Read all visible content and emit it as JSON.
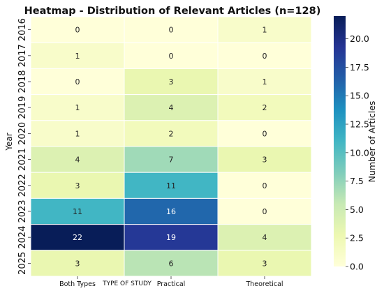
{
  "chart_data": {
    "type": "heatmap",
    "title": "Heatmap - Distribution of Relevant Articles (n=128)",
    "xlabel": "TYPE OF STUDY",
    "ylabel": "Year",
    "colorbar_label": "Number of Articles",
    "x_categories": [
      "Both Types",
      "Practical",
      "Theoretical"
    ],
    "y_categories": [
      "2016",
      "2017",
      "2018",
      "2019",
      "2020",
      "2021",
      "2022",
      "2023",
      "2024",
      "2025"
    ],
    "values": [
      [
        0,
        0,
        1
      ],
      [
        1,
        0,
        0
      ],
      [
        0,
        3,
        1
      ],
      [
        1,
        4,
        2
      ],
      [
        1,
        2,
        0
      ],
      [
        4,
        7,
        3
      ],
      [
        3,
        11,
        0
      ],
      [
        11,
        16,
        0
      ],
      [
        22,
        19,
        4
      ],
      [
        3,
        6,
        3
      ]
    ],
    "color_range": [
      0,
      22
    ],
    "colorbar_ticks": [
      "0.0",
      "2.5",
      "5.0",
      "7.5",
      "10.0",
      "12.5",
      "15.0",
      "17.5",
      "20.0"
    ],
    "colormap": "YlGnBu",
    "grid": true
  }
}
